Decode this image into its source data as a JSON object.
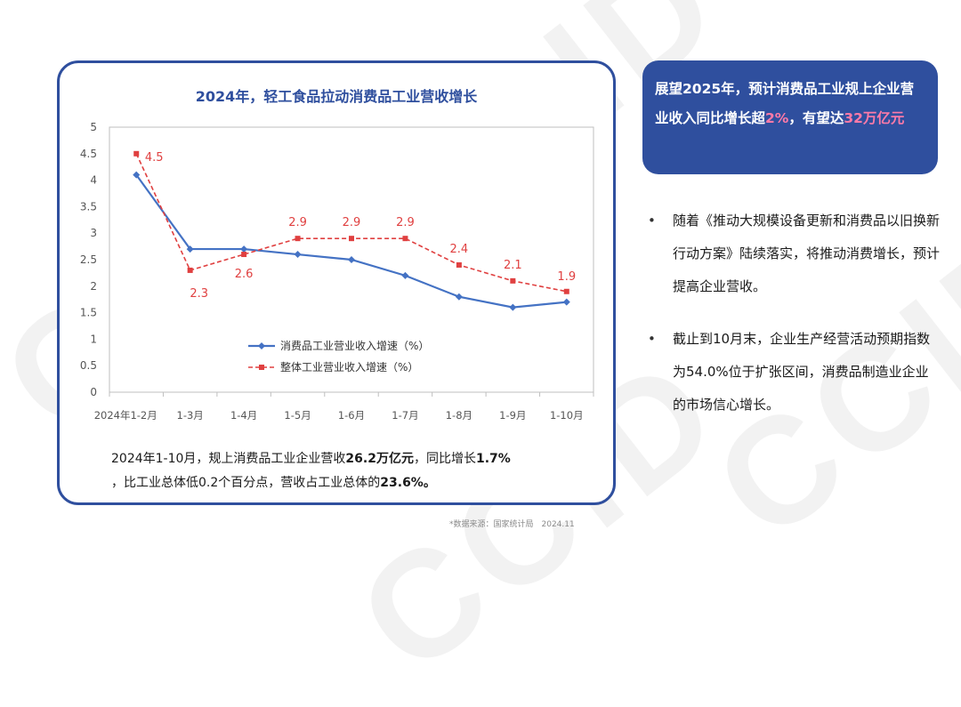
{
  "watermark": "CCID",
  "chart_data": {
    "type": "line",
    "title": "2024年，轻工食品拉动消费品工业营收增长",
    "categories": [
      "2024年1-2月",
      "1-3月",
      "1-4月",
      "1-5月",
      "1-6月",
      "1-7月",
      "1-8月",
      "1-9月",
      "1-10月"
    ],
    "ylim": [
      0,
      5
    ],
    "yticks": [
      "0",
      "0.5",
      "1",
      "1.5",
      "2",
      "2.5",
      "3",
      "3.5",
      "4",
      "4.5",
      "5"
    ],
    "legend_position": "center-left",
    "grid": false,
    "series": [
      {
        "name": "消费品工业营业收入增速（%）",
        "values": [
          4.1,
          2.7,
          2.7,
          2.6,
          2.5,
          2.2,
          1.8,
          1.6,
          1.7
        ],
        "color": "#4472c4",
        "style": "solid",
        "labels": []
      },
      {
        "name": "整体工业营业收入增速（%）",
        "values": [
          4.5,
          2.3,
          2.6,
          2.9,
          2.9,
          2.9,
          2.4,
          2.1,
          1.9
        ],
        "color": "#e04040",
        "style": "dashed",
        "labels": [
          "4.5",
          "2.3",
          "2.6",
          "2.9",
          "2.9",
          "2.9",
          "2.4",
          "2.1",
          "1.9"
        ]
      }
    ]
  },
  "summary": {
    "p1": "2024年1-10月，规上消费品工业企业营收",
    "b1": "26.2万亿元",
    "p2": "，同比增长",
    "b2": "1.7%",
    "p3": "，比工业总体低0.2个百分点，营收占工业总体的",
    "b3": "23.6%。"
  },
  "source": "*数据来源：国家统计局　2024.11",
  "callout": {
    "t1": "展望2025年，预计消费品工业规上企业营业收入同比增长超",
    "h1": "2%",
    "t2": "，有望达",
    "h2": "32万亿元"
  },
  "bullets": [
    "随着《推动大规模设备更新和消费品以旧换新行动方案》陆续落实，将推动消费增长，预计提高企业营收。",
    "截止到10月末，企业生产经营活动预期指数为54.0%位于扩张区间，消费品制造业企业的市场信心增长。"
  ],
  "bullet_marker": "•",
  "colors": {
    "brand": "#2f4f9e",
    "highlight": "#ff7aa8"
  }
}
